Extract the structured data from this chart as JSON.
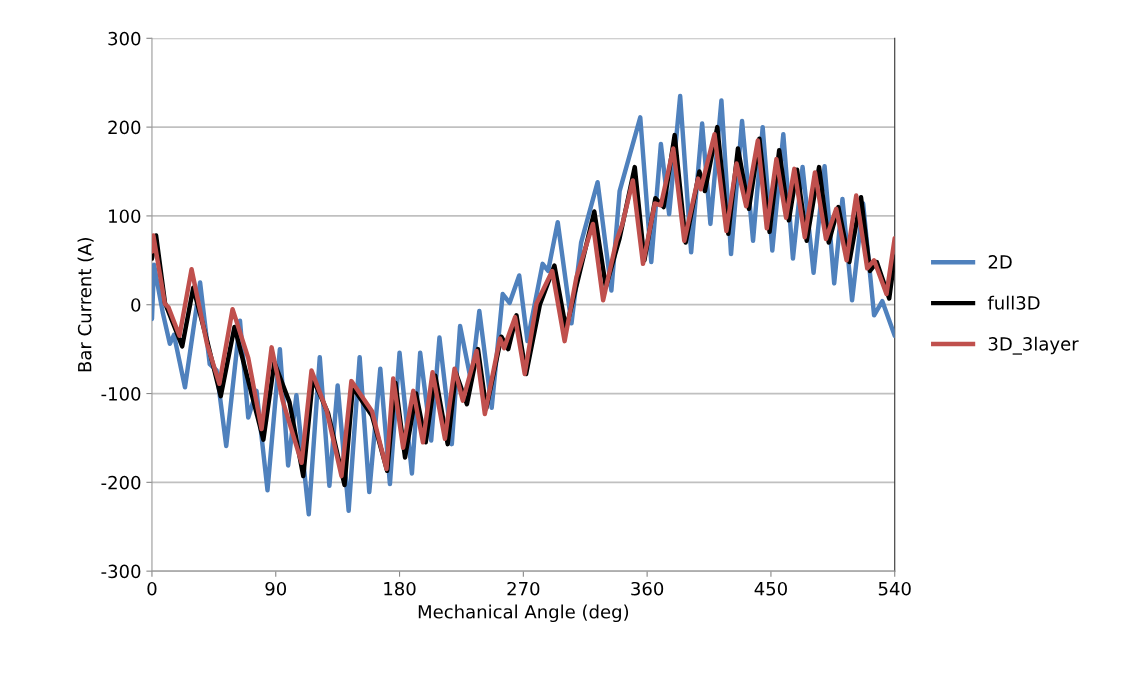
{
  "chart_data": {
    "type": "line",
    "xlabel": "Mechanical Angle (deg)",
    "ylabel": "Bar Current (A)",
    "xlim": [
      0,
      540
    ],
    "xticks": [
      0,
      90,
      180,
      270,
      360,
      450,
      540
    ],
    "ylim": [
      -300,
      300
    ],
    "yticks": [
      -300,
      -200,
      -100,
      0,
      100,
      200,
      300
    ],
    "grid": "y",
    "legend": "right",
    "marker": "none",
    "line_style": "solid",
    "series": [
      {
        "name": "2D",
        "color": "#4f81bd",
        "x": [
          0,
          1.5,
          8,
          13,
          16,
          24,
          35,
          42,
          47,
          54,
          64,
          70,
          76,
          84,
          93,
          99,
          105,
          114,
          122,
          129,
          135,
          143,
          151,
          158,
          166,
          173,
          180,
          189,
          195,
          203,
          209,
          218,
          224,
          232,
          238,
          247,
          255,
          260,
          267,
          273,
          284,
          288,
          295,
          305,
          312,
          324,
          334,
          340,
          355,
          363,
          370,
          376,
          384,
          392,
          400,
          406,
          414,
          421,
          429,
          437,
          444,
          451,
          459,
          466,
          473,
          481,
          489,
          496,
          502,
          509,
          517,
          525,
          531,
          540
        ],
        "values": [
          -16,
          45,
          -10,
          -44,
          -34,
          -93,
          25,
          -67,
          -74,
          -159,
          -18,
          -127,
          -97,
          -209,
          -50,
          -181,
          -102,
          -236,
          -59,
          -204,
          -91,
          -232,
          -59,
          -211,
          -72,
          -202,
          -54,
          -190,
          -54,
          -153,
          -37,
          -157,
          -24,
          -86,
          -7,
          -116,
          12,
          2,
          33,
          -41,
          46,
          38,
          93,
          -21,
          70,
          138,
          16,
          128,
          211,
          48,
          181,
          102,
          235,
          59,
          204,
          91,
          230,
          57,
          207,
          72,
          200,
          61,
          192,
          52,
          155,
          36,
          156,
          24,
          119,
          5,
          114,
          -12,
          4,
          -35
        ]
      },
      {
        "name": "full3D",
        "color": "#000000",
        "x": [
          0,
          3,
          9.5,
          22,
          30,
          40,
          50,
          60,
          81,
          89,
          100,
          110,
          117,
          128,
          140,
          146,
          160,
          171,
          177,
          184,
          192,
          199,
          206,
          215,
          221,
          229,
          237,
          243,
          254,
          259,
          265,
          272,
          282,
          292.6,
          301,
          310,
          321.6,
          330,
          340,
          351,
          358,
          366,
          372,
          380,
          388,
          398,
          402,
          411,
          419,
          426,
          434,
          441.6,
          449,
          456,
          463,
          469,
          476,
          485,
          492,
          499,
          507,
          515.5,
          522,
          527,
          536,
          540
        ],
        "values": [
          52,
          78,
          2,
          -47,
          19,
          -40,
          -103,
          -25,
          -152,
          -65,
          -110,
          -193,
          -83,
          -122,
          -203,
          -93,
          -125,
          -187,
          -88,
          -172,
          -100,
          -155,
          -80,
          -157,
          -77,
          -112,
          -50,
          -117,
          -36,
          -50,
          -12,
          -78,
          0,
          44,
          -27,
          30,
          105,
          20,
          75,
          155,
          50,
          120,
          110,
          191,
          70,
          150,
          128,
          200,
          80,
          176,
          108,
          187,
          82,
          174,
          95,
          152,
          72,
          155,
          70,
          110,
          48,
          121,
          38,
          48,
          7,
          54
        ]
      },
      {
        "name": "3D_3layer",
        "color": "#c0504d",
        "x": [
          0,
          1,
          9.4,
          12,
          20,
          28.8,
          40,
          49,
          58.6,
          70,
          79.7,
          87,
          95,
          108.8,
          116,
          127,
          137.8,
          145,
          160,
          170.5,
          175.4,
          182.6,
          190,
          197,
          204,
          213,
          220,
          226,
          236,
          242,
          253,
          256,
          264,
          271,
          279.5,
          291,
          300,
          308.6,
          320.6,
          328,
          337.7,
          342,
          349.6,
          357,
          365.6,
          370,
          379,
          387,
          397,
          399,
          409,
          417.6,
          425,
          432,
          440.5,
          447,
          454,
          461,
          467,
          474.6,
          482,
          490,
          497.5,
          505,
          512,
          520,
          525,
          534,
          540
        ],
        "values": [
          60,
          78,
          1,
          -3,
          -35,
          40,
          -44,
          -89,
          -5,
          -60,
          -140,
          -48,
          -108,
          -178,
          -74,
          -119,
          -193,
          -86,
          -120,
          -185,
          -83,
          -161,
          -97,
          -155,
          -76,
          -151,
          -72,
          -108,
          -52,
          -123,
          -38,
          -49,
          -14,
          -78,
          1,
          38,
          -41,
          31,
          91,
          5,
          72,
          91,
          140,
          46,
          114,
          112,
          176,
          72,
          142,
          130,
          192,
          83,
          159,
          111,
          185,
          86,
          164,
          98,
          153,
          76,
          149,
          74,
          108,
          50,
          123,
          41,
          50,
          12,
          75
        ]
      }
    ]
  }
}
